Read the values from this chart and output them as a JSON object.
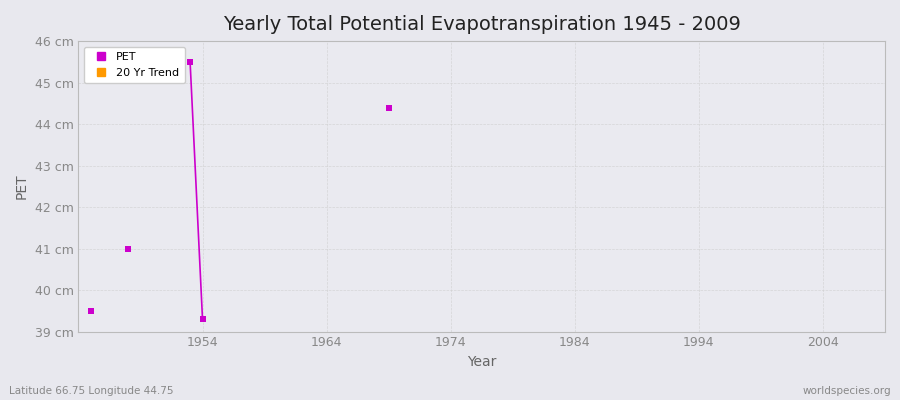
{
  "title": "Yearly Total Potential Evapotranspiration 1945 - 2009",
  "xlabel": "Year",
  "ylabel": "PET",
  "subtitle_left": "Latitude 66.75 Longitude 44.75",
  "subtitle_right": "worldspecies.org",
  "pet_segments": [
    {
      "years": [
        1953,
        1954
      ],
      "values": [
        45.5,
        39.3
      ]
    }
  ],
  "pet_dots": [
    {
      "year": 1945,
      "value": 39.5
    },
    {
      "year": 1948,
      "value": 41.0
    },
    {
      "year": 1969,
      "value": 44.4
    }
  ],
  "pet_color": "#cc00cc",
  "trend_color": "#ff9900",
  "bg_color": "#e8e8ee",
  "plot_bg_color": "#eaeaf0",
  "xlim": [
    1944,
    2009
  ],
  "ylim": [
    39.0,
    46.0
  ],
  "yticks": [
    39,
    40,
    41,
    42,
    43,
    44,
    45,
    46
  ],
  "ytick_labels": [
    "39 cm",
    "40 cm",
    "41 cm",
    "42 cm",
    "43 cm",
    "44 cm",
    "45 cm",
    "46 cm"
  ],
  "xticks": [
    1954,
    1964,
    1974,
    1984,
    1994,
    2004
  ],
  "grid_color": "#cccccc",
  "marker_size": 4,
  "line_width": 1.2,
  "title_fontsize": 14,
  "axis_label_fontsize": 10,
  "tick_fontsize": 9,
  "tick_color": "#888888"
}
